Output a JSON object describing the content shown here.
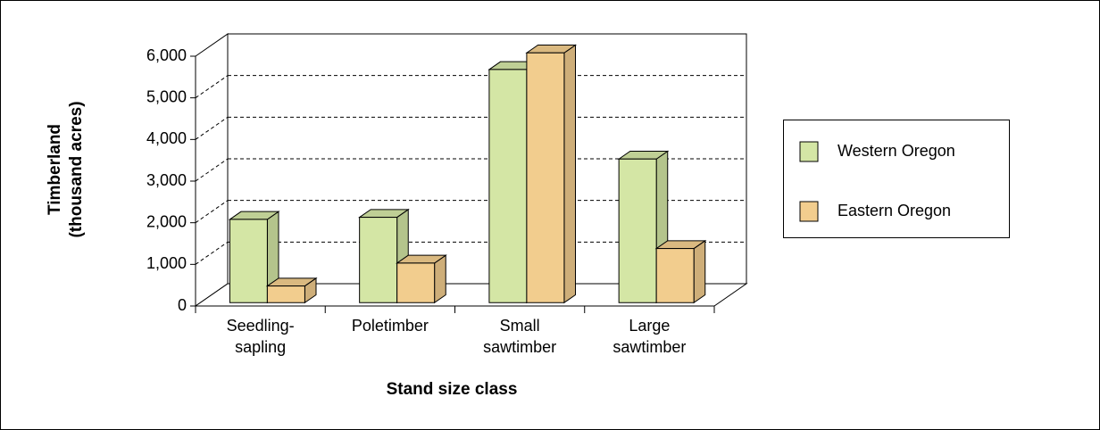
{
  "chart_data": {
    "type": "bar3d",
    "y_label": [
      "Timberland",
      "(thousand acres)"
    ],
    "x_label": "Stand size class",
    "categories": [
      [
        "Seedling-",
        "sapling"
      ],
      [
        "Poletimber"
      ],
      [
        "Small",
        "sawtimber"
      ],
      [
        "Large",
        "sawtimber"
      ]
    ],
    "series": [
      {
        "name": "Western Oregon",
        "color": "#d4e6a5",
        "values": [
          2000,
          2050,
          5600,
          3450
        ]
      },
      {
        "name": "Eastern Oregon",
        "color": "#f2cd8e",
        "values": [
          400,
          950,
          6000,
          1300
        ]
      }
    ],
    "ylim": [
      0,
      6000
    ],
    "yticks": [
      0,
      {
        "value": 1000,
        "label": "1,000"
      },
      {
        "value": 2000,
        "label": "2,000"
      },
      {
        "value": 3000,
        "label": "3,000"
      },
      {
        "value": 4000,
        "label": "4,000"
      },
      {
        "value": 5000,
        "label": "5,000"
      },
      {
        "value": 6000,
        "label": "6,000"
      }
    ],
    "grid": true
  }
}
